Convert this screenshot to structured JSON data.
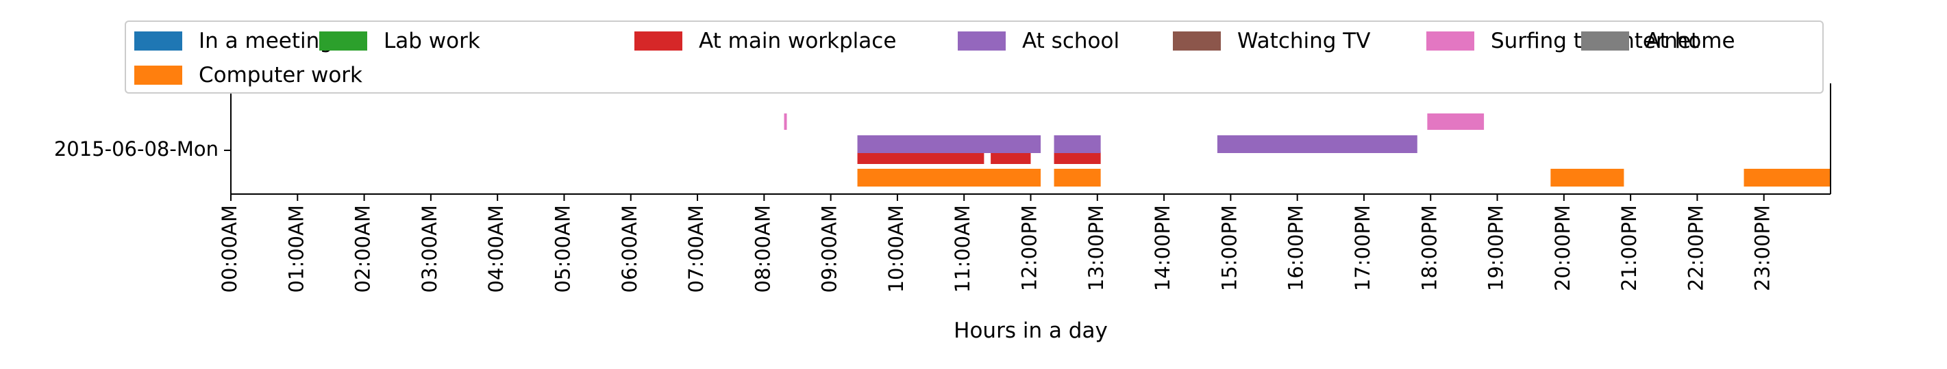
{
  "chart_data": {
    "type": "gantt",
    "xlabel": "Hours in a day",
    "x_range_hours": [
      0,
      24
    ],
    "x_ticks": [
      "00:00AM",
      "01:00AM",
      "02:00AM",
      "03:00AM",
      "04:00AM",
      "05:00AM",
      "06:00AM",
      "07:00AM",
      "08:00AM",
      "09:00AM",
      "10:00AM",
      "11:00AM",
      "12:00PM",
      "13:00PM",
      "14:00PM",
      "15:00PM",
      "16:00PM",
      "17:00PM",
      "18:00PM",
      "19:00PM",
      "20:00PM",
      "21:00PM",
      "22:00PM",
      "23:00PM"
    ],
    "y_categories": [
      "2015-06-08-Mon"
    ],
    "legend_placement": "upper-center",
    "series": [
      {
        "name": "In a meeting",
        "color": "#1f77b4",
        "intervals": []
      },
      {
        "name": "Computer work",
        "color": "#ff7f0e",
        "intervals": [
          [
            9.4,
            12.15
          ],
          [
            12.35,
            13.05
          ],
          [
            19.8,
            20.9
          ],
          [
            22.7,
            24.0
          ]
        ]
      },
      {
        "name": "Lab work",
        "color": "#2ca02c",
        "intervals": []
      },
      {
        "name": "At main workplace",
        "color": "#d62728",
        "intervals": [
          [
            9.4,
            11.3
          ],
          [
            11.4,
            12.0
          ],
          [
            12.35,
            13.05
          ]
        ]
      },
      {
        "name": "At school",
        "color": "#9467bd",
        "intervals": [
          [
            9.4,
            12.15
          ],
          [
            12.35,
            13.05
          ],
          [
            14.8,
            17.8
          ]
        ]
      },
      {
        "name": "Watching TV",
        "color": "#8c564b",
        "intervals": []
      },
      {
        "name": "Surfing the internet",
        "color": "#e377c2",
        "intervals": [
          [
            8.3,
            8.35
          ],
          [
            17.95,
            18.8
          ]
        ]
      },
      {
        "name": "At home",
        "color": "#7f7f7f",
        "intervals": []
      }
    ]
  }
}
